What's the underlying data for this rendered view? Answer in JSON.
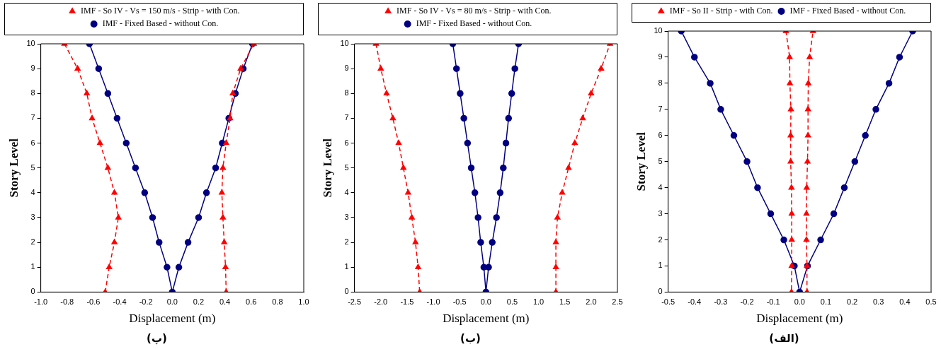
{
  "chart_data": [
    {
      "type": "line",
      "xlabel": "Displacement (m)",
      "ylabel": "Story Level",
      "annotations": [
        "(پ)"
      ],
      "legend": "top",
      "xlim": [
        -1.0,
        1.0
      ],
      "xticks": [
        {
          "value": -1.0,
          "label": "-1.0"
        },
        {
          "value": -0.8,
          "label": "-0.8"
        },
        {
          "value": -0.6,
          "label": "-0.6"
        },
        {
          "value": -0.4,
          "label": "-0.4"
        },
        {
          "value": -0.2,
          "label": "-0.2"
        },
        {
          "value": 0,
          "label": "0.0"
        },
        {
          "value": 0.2,
          "label": "0.2"
        },
        {
          "value": 0.4,
          "label": "0.4"
        },
        {
          "value": 0.6,
          "label": "0.6"
        },
        {
          "value": 0.8,
          "label": "0.8"
        },
        {
          "value": 1.0,
          "label": "1.0"
        }
      ],
      "ylim": [
        0,
        10
      ],
      "yticks": [
        0,
        1,
        2,
        3,
        4,
        5,
        6,
        7,
        8,
        9,
        10
      ],
      "series": [
        {
          "name": "IMF - So IV - Vs = 150 m/s - Strip - with Con.",
          "color": "#ff0000",
          "marker": "triangle",
          "line_style": "dashed",
          "x": [
            -0.82,
            -0.72,
            -0.65,
            -0.61,
            -0.55,
            -0.49,
            -0.44,
            -0.41,
            -0.44,
            -0.48,
            -0.51,
            null,
            0.41,
            0.405,
            0.395,
            0.385,
            0.377,
            0.385,
            0.41,
            0.44,
            0.46,
            0.52,
            0.62
          ],
          "values": [
            10,
            9,
            8,
            7,
            6,
            5,
            4,
            3,
            2,
            1,
            0,
            null,
            0,
            1,
            2,
            3,
            4,
            5,
            6,
            7,
            8,
            9,
            10
          ]
        },
        {
          "name": "IMF - Fixed Based - without Con.",
          "color": "#000080",
          "marker": "circle",
          "line_style": "solid",
          "x": [
            -0.63,
            -0.56,
            -0.49,
            -0.42,
            -0.35,
            -0.28,
            -0.21,
            -0.15,
            -0.1,
            -0.04,
            0,
            0.05,
            0.12,
            0.2,
            0.26,
            0.33,
            0.38,
            0.43,
            0.48,
            0.54,
            0.61
          ],
          "values": [
            10,
            9,
            8,
            7,
            6,
            5,
            4,
            3,
            2,
            1,
            0,
            1,
            2,
            3,
            4,
            5,
            6,
            7,
            8,
            9,
            10
          ]
        }
      ]
    },
    {
      "type": "line",
      "xlabel": "Displacement (m)",
      "ylabel": "Story Level",
      "annotations": [
        "(ب)"
      ],
      "legend": "top",
      "xlim": [
        -2.5,
        2.5
      ],
      "xticks": [
        {
          "value": -2.5,
          "label": "-2.5"
        },
        {
          "value": -2.0,
          "label": "-2.0"
        },
        {
          "value": -1.5,
          "label": "-1.5"
        },
        {
          "value": -1.0,
          "label": "-1.0"
        },
        {
          "value": -0.5,
          "label": "-0.5"
        },
        {
          "value": 0,
          "label": "0.0"
        },
        {
          "value": 0.5,
          "label": "0.5"
        },
        {
          "value": 1.0,
          "label": "1.0"
        },
        {
          "value": 1.5,
          "label": "1.5"
        },
        {
          "value": 2.0,
          "label": "2.0"
        },
        {
          "value": 2.5,
          "label": "2.5"
        }
      ],
      "ylim": [
        0,
        10
      ],
      "yticks": [
        0,
        1,
        2,
        3,
        4,
        5,
        6,
        7,
        8,
        9,
        10
      ],
      "series": [
        {
          "name": "IMF - So IV - Vs = 80 m/s - Strip - with Con.",
          "color": "#ff0000",
          "marker": "triangle",
          "line_style": "dashed",
          "x": [
            -2.09,
            -2.0,
            -1.89,
            -1.77,
            -1.66,
            -1.57,
            -1.48,
            -1.41,
            -1.34,
            -1.29,
            -1.26,
            null,
            1.33,
            1.33,
            1.33,
            1.36,
            1.45,
            1.57,
            1.69,
            1.84,
            2.0,
            2.19,
            2.36
          ],
          "values": [
            10,
            9,
            8,
            7,
            6,
            5,
            4,
            3,
            2,
            1,
            0,
            null,
            0,
            1,
            2,
            3,
            4,
            5,
            6,
            7,
            8,
            9,
            10
          ]
        },
        {
          "name": "IMF - Fixed Based - without Con.",
          "color": "#000080",
          "marker": "circle",
          "line_style": "solid",
          "x": [
            -0.63,
            -0.56,
            -0.49,
            -0.42,
            -0.35,
            -0.28,
            -0.21,
            -0.15,
            -0.1,
            -0.04,
            0,
            0.05,
            0.12,
            0.2,
            0.27,
            0.33,
            0.38,
            0.43,
            0.49,
            0.55,
            0.62
          ],
          "values": [
            10,
            9,
            8,
            7,
            6,
            5,
            4,
            3,
            2,
            1,
            0,
            1,
            2,
            3,
            4,
            5,
            6,
            7,
            8,
            9,
            10
          ]
        }
      ]
    },
    {
      "type": "line",
      "xlabel": "Displacement (m)",
      "ylabel": "Story Level",
      "annotations": [
        "(الف)"
      ],
      "legend": "top",
      "xlim": [
        -0.5,
        0.5
      ],
      "xticks": [
        {
          "value": -0.5,
          "label": "-0.5"
        },
        {
          "value": -0.4,
          "label": "-0.4"
        },
        {
          "value": -0.3,
          "label": "-0.3"
        },
        {
          "value": -0.2,
          "label": "-0.2"
        },
        {
          "value": -0.1,
          "label": "-0.1"
        },
        {
          "value": 0,
          "label": "0.0"
        },
        {
          "value": 0.1,
          "label": "0.1"
        },
        {
          "value": 0.2,
          "label": "0.2"
        },
        {
          "value": 0.3,
          "label": "0.3"
        },
        {
          "value": 0.4,
          "label": "0.4"
        },
        {
          "value": 0.5,
          "label": "0.5"
        }
      ],
      "ylim": [
        0,
        10
      ],
      "yticks": [
        0,
        1,
        2,
        3,
        4,
        5,
        6,
        7,
        8,
        9,
        10
      ],
      "series": [
        {
          "name": "IMF - So II - Strip - with Con.",
          "color": "#ff0000",
          "marker": "triangle",
          "line_style": "dashed",
          "x": [
            -0.052,
            -0.038,
            -0.037,
            -0.033,
            -0.034,
            -0.034,
            -0.031,
            -0.03,
            -0.03,
            -0.03,
            -0.031,
            null,
            0.028,
            0.028,
            0.026,
            0.026,
            0.027,
            0.03,
            0.032,
            0.032,
            0.033,
            0.038,
            0.051
          ],
          "values": [
            10,
            9,
            8,
            7,
            6,
            5,
            4,
            3,
            2,
            1,
            0,
            null,
            0,
            1,
            2,
            3,
            4,
            5,
            6,
            7,
            8,
            9,
            10
          ]
        },
        {
          "name": "IMF - Fixed Based - without Con.",
          "color": "#000080",
          "marker": "circle",
          "line_style": "solid",
          "x": [
            -0.45,
            -0.4,
            -0.34,
            -0.3,
            -0.25,
            -0.2,
            -0.16,
            -0.11,
            -0.06,
            -0.02,
            0,
            0.03,
            0.08,
            0.13,
            0.17,
            0.21,
            0.25,
            0.29,
            0.34,
            0.38,
            0.43
          ],
          "values": [
            10,
            9,
            8,
            7,
            6,
            5,
            4,
            3,
            2,
            1,
            0,
            1,
            2,
            3,
            4,
            5,
            6,
            7,
            8,
            9,
            10
          ]
        }
      ]
    }
  ]
}
